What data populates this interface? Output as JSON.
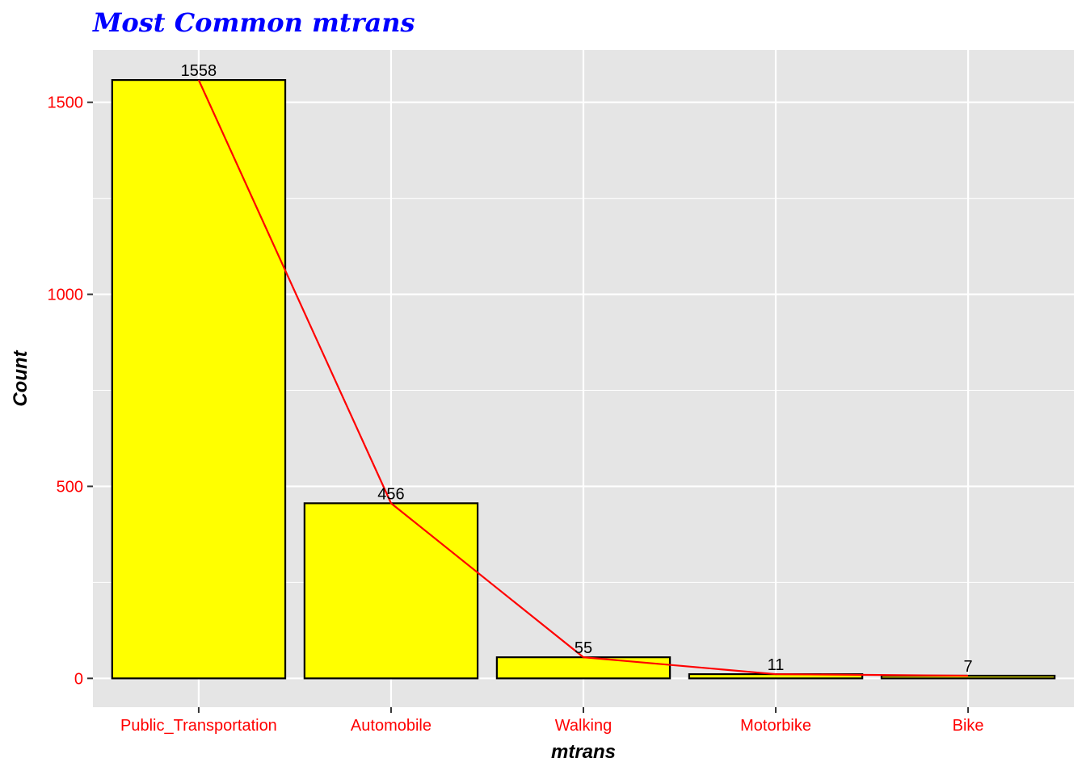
{
  "chart_data": {
    "type": "bar",
    "title": "Most Common mtrans",
    "xlabel": "mtrans",
    "ylabel": "Count",
    "categories": [
      "Public_Transportation",
      "Automobile",
      "Walking",
      "Motorbike",
      "Bike"
    ],
    "values": [
      1558,
      456,
      55,
      11,
      7
    ],
    "data_labels": [
      "1558",
      "456",
      "55",
      "11",
      "7"
    ],
    "ylim": [
      -75,
      1636
    ],
    "yticks": [
      0,
      500,
      1000,
      1500
    ],
    "ytick_labels": [
      "0",
      "500",
      "1000",
      "1500"
    ],
    "minor_yticks": [
      250,
      750,
      1250
    ],
    "grid": true,
    "overlay_line": {
      "type": "line",
      "values": [
        1558,
        456,
        55,
        11,
        7
      ]
    },
    "colors": {
      "bar_fill": "#FFFF00",
      "bar_stroke": "#000000",
      "line": "#FF0000",
      "panel_bg": "#E5E5E5",
      "grid": "#FFFFFF",
      "title": "#0000FF",
      "tick_labels": "#FF0000",
      "axis_titles": "#000000"
    }
  }
}
